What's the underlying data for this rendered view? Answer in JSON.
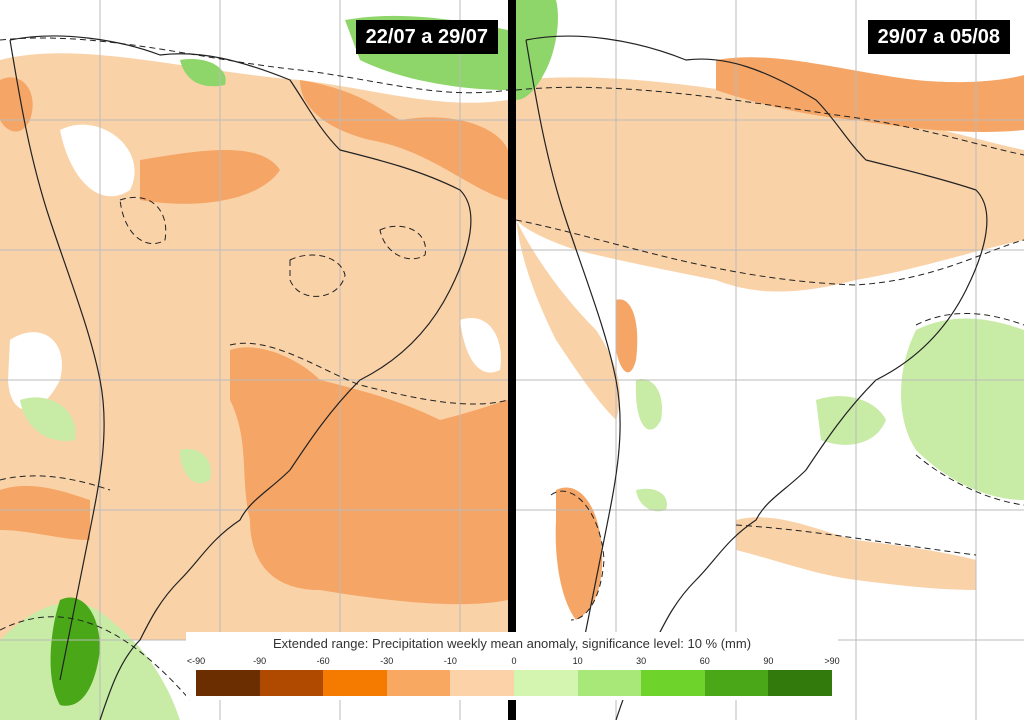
{
  "panels": [
    {
      "period": "22/07 a 29/07"
    },
    {
      "period": "29/07 a 05/08"
    }
  ],
  "legend": {
    "title": "Extended range: Precipitation weekly mean anomaly, significance level: 10 % (mm)",
    "ticks": [
      "<-90",
      "-90",
      "-60",
      "-30",
      "-10",
      "0",
      "10",
      "30",
      "60",
      "90",
      ">90"
    ],
    "colors": [
      "#6b2e00",
      "#b04a00",
      "#f47a00",
      "#f8a860",
      "#fcd3a8",
      "#d4f5b0",
      "#a8e878",
      "#6ed42c",
      "#4aa818",
      "#327a0c"
    ]
  },
  "palette": {
    "light_orange": "#fad2a8",
    "mid_orange": "#f5a565",
    "dark_orange": "#e67a20",
    "light_green": "#c8eba6",
    "mid_green": "#8fd66a",
    "dark_green": "#4aa818"
  }
}
